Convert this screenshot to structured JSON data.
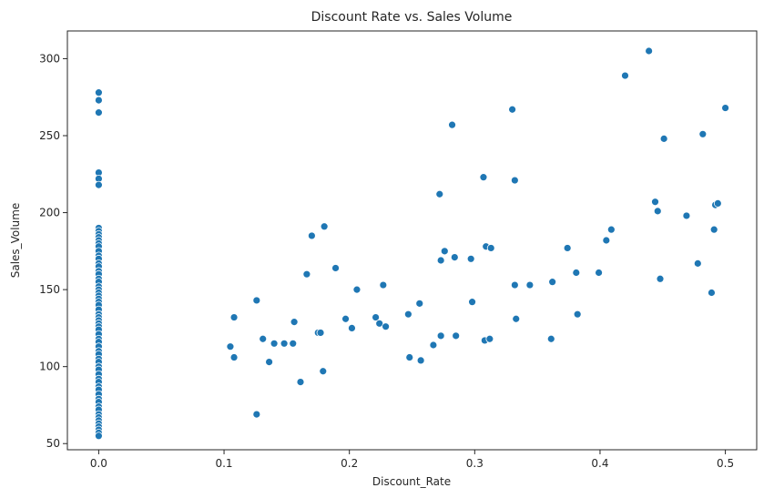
{
  "chart_data": {
    "type": "scatter",
    "title": "Discount Rate vs. Sales Volume",
    "xlabel": "Discount_Rate",
    "ylabel": "Sales_Volume",
    "xlim": [
      -0.025,
      0.525
    ],
    "ylim": [
      46,
      318
    ],
    "xticks": [
      0.0,
      0.1,
      0.2,
      0.3,
      0.4,
      0.5
    ],
    "xtick_labels": [
      "0.0",
      "0.1",
      "0.2",
      "0.3",
      "0.4",
      "0.5"
    ],
    "yticks": [
      50,
      100,
      150,
      200,
      250,
      300
    ],
    "ytick_labels": [
      "50",
      "100",
      "150",
      "200",
      "250",
      "300"
    ],
    "grid": false,
    "marker_color": "#1f77b4",
    "points": [
      [
        0,
        278
      ],
      [
        0,
        273
      ],
      [
        0,
        265
      ],
      [
        0,
        226
      ],
      [
        0,
        222
      ],
      [
        0,
        218
      ],
      [
        0,
        190
      ],
      [
        0,
        188
      ],
      [
        0,
        186
      ],
      [
        0,
        184
      ],
      [
        0,
        182
      ],
      [
        0,
        180
      ],
      [
        0,
        178
      ],
      [
        0,
        175
      ],
      [
        0,
        172
      ],
      [
        0,
        170
      ],
      [
        0,
        167
      ],
      [
        0,
        165
      ],
      [
        0,
        162
      ],
      [
        0,
        160
      ],
      [
        0,
        157
      ],
      [
        0,
        155
      ],
      [
        0,
        152
      ],
      [
        0,
        150
      ],
      [
        0,
        148
      ],
      [
        0,
        146
      ],
      [
        0,
        144
      ],
      [
        0,
        142
      ],
      [
        0,
        140
      ],
      [
        0,
        137
      ],
      [
        0,
        134
      ],
      [
        0,
        132
      ],
      [
        0,
        130
      ],
      [
        0,
        128
      ],
      [
        0,
        126
      ],
      [
        0,
        124
      ],
      [
        0,
        121
      ],
      [
        0,
        118
      ],
      [
        0,
        116
      ],
      [
        0,
        113
      ],
      [
        0,
        110
      ],
      [
        0,
        108
      ],
      [
        0,
        105
      ],
      [
        0,
        103
      ],
      [
        0,
        100
      ],
      [
        0,
        98
      ],
      [
        0,
        95
      ],
      [
        0,
        92
      ],
      [
        0,
        90
      ],
      [
        0,
        87
      ],
      [
        0,
        85
      ],
      [
        0,
        82
      ],
      [
        0,
        79
      ],
      [
        0,
        77
      ],
      [
        0,
        74
      ],
      [
        0,
        72
      ],
      [
        0,
        69
      ],
      [
        0,
        67
      ],
      [
        0,
        65
      ],
      [
        0,
        63
      ],
      [
        0,
        61
      ],
      [
        0,
        59
      ],
      [
        0,
        57
      ],
      [
        0,
        55
      ],
      [
        0.105,
        113
      ],
      [
        0.108,
        106
      ],
      [
        0.108,
        132
      ],
      [
        0.126,
        69
      ],
      [
        0.126,
        143
      ],
      [
        0.131,
        118
      ],
      [
        0.136,
        103
      ],
      [
        0.14,
        115
      ],
      [
        0.148,
        115
      ],
      [
        0.155,
        115
      ],
      [
        0.156,
        129
      ],
      [
        0.161,
        90
      ],
      [
        0.166,
        160
      ],
      [
        0.17,
        185
      ],
      [
        0.175,
        122
      ],
      [
        0.177,
        122
      ],
      [
        0.179,
        97
      ],
      [
        0.18,
        191
      ],
      [
        0.189,
        164
      ],
      [
        0.197,
        131
      ],
      [
        0.202,
        125
      ],
      [
        0.206,
        150
      ],
      [
        0.221,
        132
      ],
      [
        0.224,
        128
      ],
      [
        0.227,
        153
      ],
      [
        0.229,
        126
      ],
      [
        0.247,
        134
      ],
      [
        0.248,
        106
      ],
      [
        0.256,
        141
      ],
      [
        0.257,
        104
      ],
      [
        0.267,
        114
      ],
      [
        0.272,
        212
      ],
      [
        0.273,
        169
      ],
      [
        0.273,
        120
      ],
      [
        0.276,
        175
      ],
      [
        0.282,
        257
      ],
      [
        0.284,
        171
      ],
      [
        0.285,
        120
      ],
      [
        0.297,
        170
      ],
      [
        0.298,
        142
      ],
      [
        0.307,
        223
      ],
      [
        0.308,
        117
      ],
      [
        0.309,
        178
      ],
      [
        0.312,
        118
      ],
      [
        0.313,
        177
      ],
      [
        0.33,
        267
      ],
      [
        0.332,
        221
      ],
      [
        0.332,
        153
      ],
      [
        0.333,
        131
      ],
      [
        0.344,
        153
      ],
      [
        0.361,
        118
      ],
      [
        0.362,
        155
      ],
      [
        0.374,
        177
      ],
      [
        0.381,
        161
      ],
      [
        0.382,
        134
      ],
      [
        0.399,
        161
      ],
      [
        0.405,
        182
      ],
      [
        0.409,
        189
      ],
      [
        0.42,
        289
      ],
      [
        0.439,
        305
      ],
      [
        0.444,
        207
      ],
      [
        0.446,
        201
      ],
      [
        0.448,
        157
      ],
      [
        0.451,
        248
      ],
      [
        0.469,
        198
      ],
      [
        0.478,
        167
      ],
      [
        0.482,
        251
      ],
      [
        0.489,
        148
      ],
      [
        0.491,
        189
      ],
      [
        0.492,
        205
      ],
      [
        0.494,
        206
      ],
      [
        0.5,
        268
      ]
    ]
  }
}
